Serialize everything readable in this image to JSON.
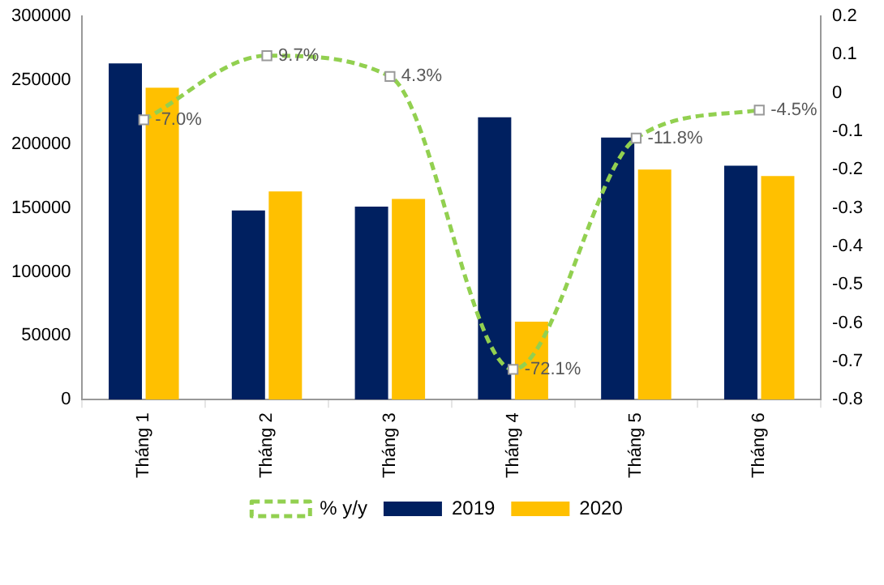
{
  "chart_data": {
    "type": "bar",
    "categories": [
      "Tháng 1",
      "Tháng 2",
      "Tháng 3",
      "Tháng 4",
      "Tháng 5",
      "Tháng 6"
    ],
    "series": [
      {
        "name": "2019",
        "color": "#002060",
        "values": [
          263000,
          148000,
          151000,
          221000,
          205000,
          183000
        ]
      },
      {
        "name": "2020",
        "color": "#ffc000",
        "values": [
          244000,
          163000,
          157000,
          61000,
          180000,
          175000
        ]
      },
      {
        "name": "% y/y",
        "type": "line",
        "axis": "y2",
        "color": "#92d050",
        "line_style": "dashed",
        "marker": "square",
        "values": [
          -0.07,
          0.097,
          0.043,
          -0.721,
          -0.118,
          -0.045
        ],
        "value_labels": [
          "-7.0%",
          "9.7%",
          "4.3%",
          "-72.1%",
          "-11.8%",
          "-4.5%"
        ]
      }
    ],
    "ylim": [
      0,
      300000
    ],
    "yticks": [
      0,
      50000,
      100000,
      150000,
      200000,
      250000,
      300000
    ],
    "y2lim": [
      -0.8,
      0.2
    ],
    "y2ticks": [
      -0.8,
      -0.7,
      -0.6,
      -0.5,
      -0.4,
      -0.3,
      -0.2,
      -0.1,
      0,
      0.1,
      0.2
    ],
    "grid": false,
    "legend": "bottom"
  }
}
